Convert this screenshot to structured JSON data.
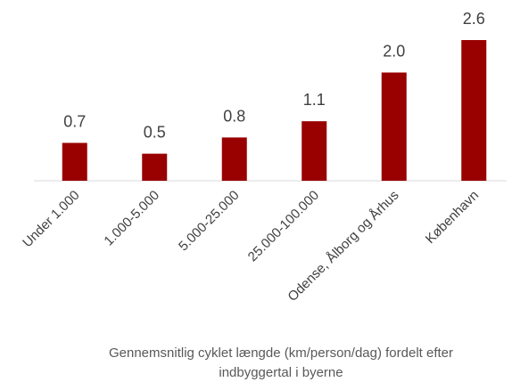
{
  "chart_data": {
    "type": "bar",
    "title": "Gennemsnitlig cyklet længde (km/person/dag) fordelt efter indbyggertal i byerne",
    "categories": [
      "Under 1.000",
      "1.000-5.000",
      "5.000-25.000",
      "25.000-100.000",
      "Odense, Ålborg og Århus",
      "København"
    ],
    "values": [
      0.7,
      0.5,
      0.8,
      1.1,
      2.0,
      2.6
    ],
    "value_labels": [
      "0.7",
      "0.5",
      "0.8",
      "1.1",
      "2.0",
      "2.6"
    ],
    "color": "#990000"
  }
}
